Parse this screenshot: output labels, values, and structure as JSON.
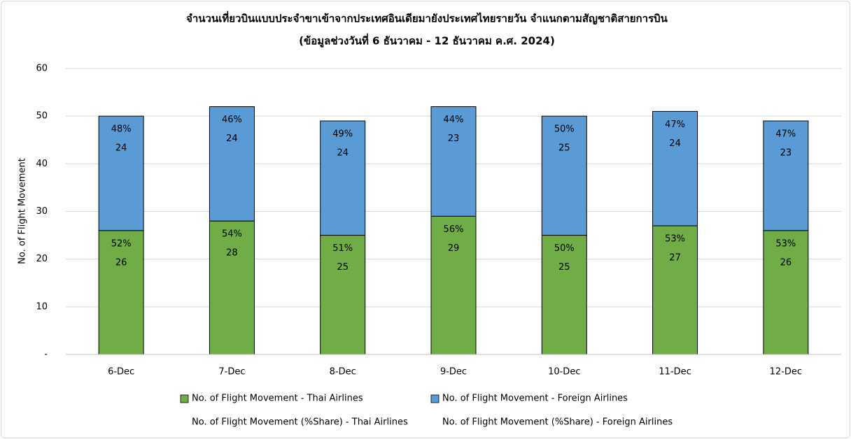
{
  "chart_data": {
    "type": "stacked_bar",
    "title": "จำนวนเที่ยวบินแบบประจำขาเข้าจากประเทศอินเดียมายังประเทศไทยรายวัน  จำแนกตามสัญชาติสายการบิน",
    "subtitle": "(ข้อมูลช่วงวันที่ 6 ธันวาคม - 12 ธันวาคม ค.ศ. 2024)",
    "y_label": "No. of Flight Movement",
    "categories": [
      "6-Dec",
      "7-Dec",
      "8-Dec",
      "9-Dec",
      "10-Dec",
      "11-Dec",
      "12-Dec"
    ],
    "series": [
      {
        "name": "No. of Flight Movement - Thai Airlines",
        "color": "#70ad47",
        "values": [
          26,
          28,
          25,
          29,
          25,
          27,
          26
        ]
      },
      {
        "name": "No. of Flight Movement - Foreign Airlines",
        "color": "#5b9bd5",
        "values": [
          24,
          24,
          24,
          23,
          25,
          24,
          23
        ]
      }
    ],
    "share_series": [
      {
        "name": "No. of Flight Movement (%Share) - Thai Airlines",
        "values": [
          52,
          54,
          51,
          56,
          50,
          53,
          53
        ],
        "value_labels": [
          "52%",
          "54%",
          "51%",
          "56%",
          "50%",
          "53%",
          "53%"
        ]
      },
      {
        "name": "No. of Flight Movement (%Share) - Foreign Airlines",
        "values": [
          48,
          46,
          49,
          44,
          50,
          47,
          47
        ],
        "value_labels": [
          "48%",
          "46%",
          "49%",
          "44%",
          "50%",
          "47%",
          "47%"
        ]
      }
    ],
    "ylim": [
      0,
      60
    ],
    "yticks": [
      {
        "value": 0,
        "label": "-"
      },
      10,
      20,
      30,
      40,
      50,
      60
    ],
    "grid": true
  }
}
